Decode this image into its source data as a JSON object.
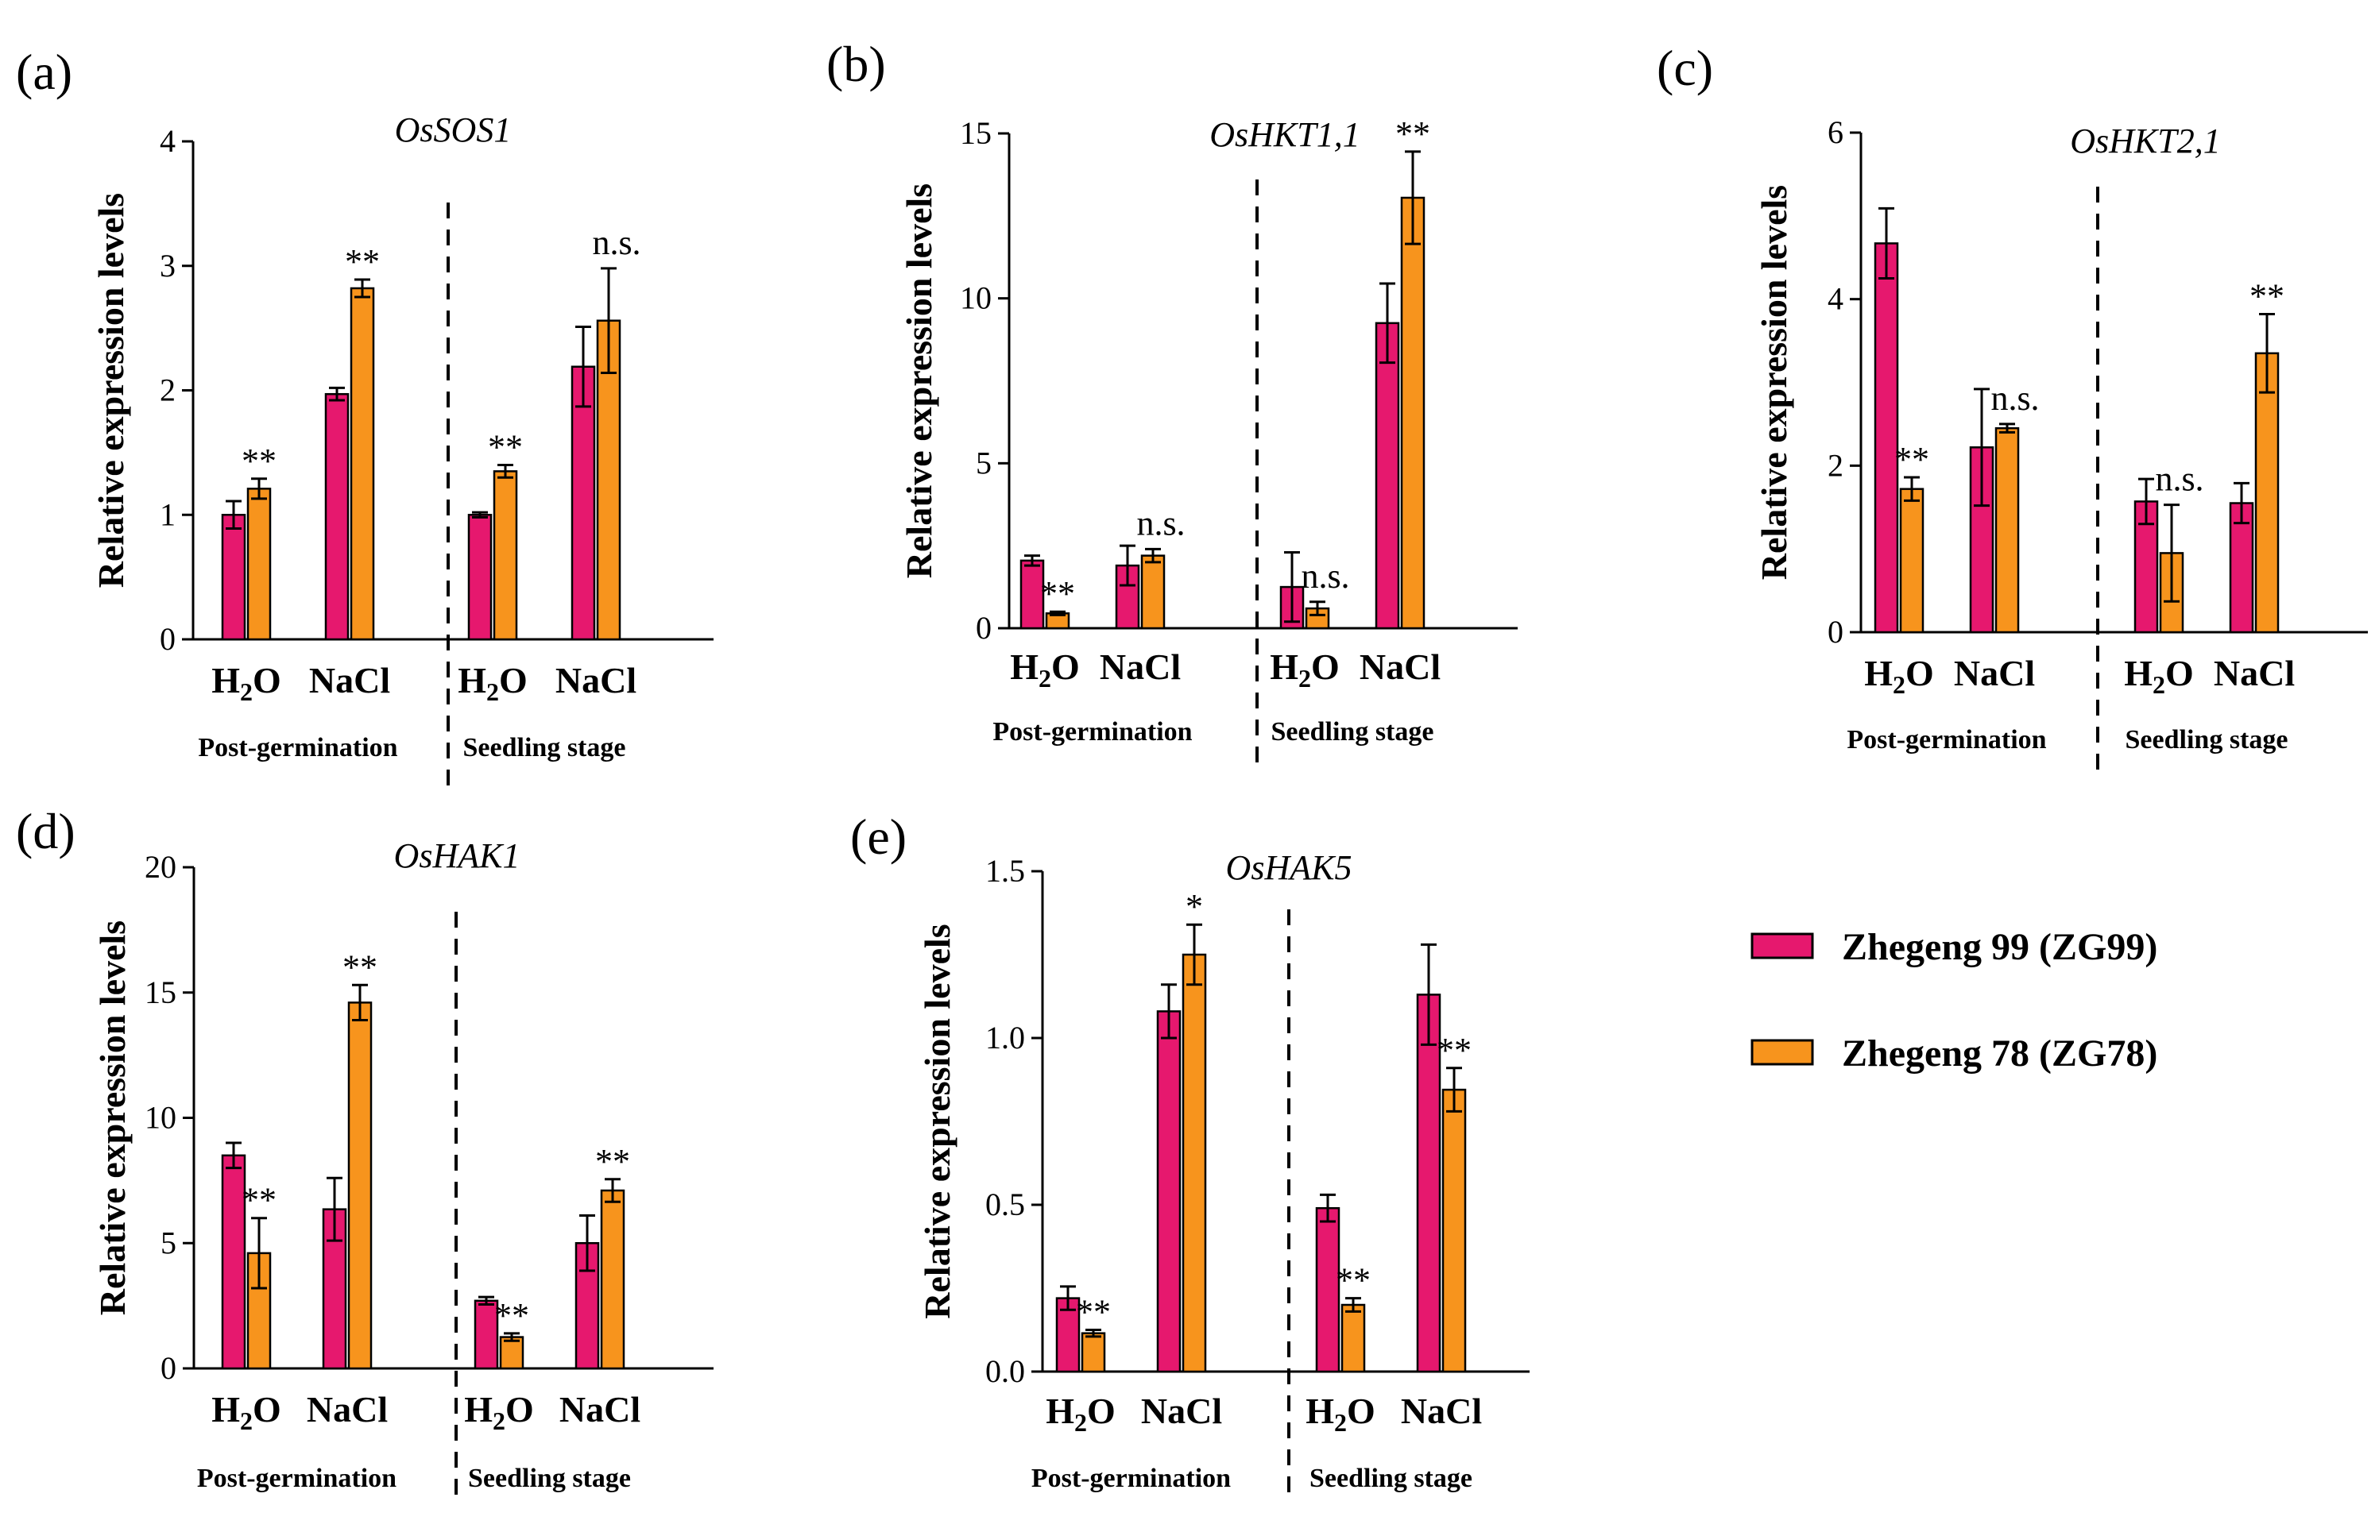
{
  "colors": {
    "zg99": "#E6186E",
    "zg78": "#F7941D",
    "axis": "#000000"
  },
  "legend": {
    "items": [
      {
        "key": "zg99",
        "label": "Zhegeng 99 (ZG99)"
      },
      {
        "key": "zg78",
        "label": "Zhegeng 78 (ZG78)"
      }
    ]
  },
  "chart_data": [
    {
      "panel": "(a)",
      "title": "OsSOS1",
      "type": "bar",
      "ylabel": "Relative expression levels",
      "ylim": [
        0,
        4
      ],
      "yticks": [
        {
          "v": 0,
          "t": "0"
        },
        {
          "v": 1,
          "t": "1"
        },
        {
          "v": 2,
          "t": "2"
        },
        {
          "v": 3,
          "t": "3"
        },
        {
          "v": 4,
          "t": "4"
        }
      ],
      "stages": [
        "Post-germination",
        "Seedling stage"
      ],
      "categories": [
        "H2O",
        "NaCl",
        "H2O",
        "NaCl"
      ],
      "series": [
        {
          "name": "Zhegeng 99 (ZG99)",
          "values": [
            1.0,
            1.97,
            1.0,
            2.19
          ],
          "errors": [
            0.11,
            0.05,
            0.02,
            0.32
          ]
        },
        {
          "name": "Zhegeng 78 (ZG78)",
          "values": [
            1.21,
            2.82,
            1.35,
            2.56
          ],
          "errors": [
            0.08,
            0.07,
            0.05,
            0.42
          ]
        }
      ],
      "annotations": [
        "**",
        "**",
        "**",
        "n.s."
      ]
    },
    {
      "panel": "(b)",
      "title": "OsHKT1,1",
      "type": "bar",
      "ylabel": "Relative expression levels",
      "ylim": [
        0,
        15
      ],
      "yticks": [
        {
          "v": 0,
          "t": "0"
        },
        {
          "v": 5,
          "t": "5"
        },
        {
          "v": 10,
          "t": "10"
        },
        {
          "v": 15,
          "t": "15"
        }
      ],
      "stages": [
        "Post-germination",
        "Seedling stage"
      ],
      "categories": [
        "H2O",
        "NaCl",
        "H2O",
        "NaCl"
      ],
      "series": [
        {
          "name": "Zhegeng 99 (ZG99)",
          "values": [
            2.05,
            1.9,
            1.25,
            9.25
          ],
          "errors": [
            0.15,
            0.6,
            1.05,
            1.2
          ]
        },
        {
          "name": "Zhegeng 78 (ZG78)",
          "values": [
            0.45,
            2.2,
            0.6,
            13.05
          ],
          "errors": [
            0.05,
            0.2,
            0.2,
            1.4
          ]
        }
      ],
      "annotations": [
        "**",
        "n.s.",
        "n.s.",
        "**"
      ]
    },
    {
      "panel": "(c)",
      "title": "OsHKT2,1",
      "type": "bar",
      "ylabel": "Relative expression levels",
      "ylim": [
        0,
        6
      ],
      "yticks": [
        {
          "v": 0,
          "t": "0"
        },
        {
          "v": 2,
          "t": "2"
        },
        {
          "v": 4,
          "t": "4"
        },
        {
          "v": 6,
          "t": "6"
        }
      ],
      "stages": [
        "Post-germination",
        "Seedling stage"
      ],
      "categories": [
        "H2O",
        "NaCl",
        "H2O",
        "NaCl"
      ],
      "series": [
        {
          "name": "Zhegeng 99 (ZG99)",
          "values": [
            4.67,
            2.22,
            1.57,
            1.55
          ],
          "errors": [
            0.42,
            0.7,
            0.27,
            0.24
          ]
        },
        {
          "name": "Zhegeng 78 (ZG78)",
          "values": [
            1.72,
            2.45,
            0.95,
            3.35
          ],
          "errors": [
            0.14,
            0.05,
            0.58,
            0.47
          ]
        }
      ],
      "annotations": [
        "**",
        "n.s.",
        "n.s.",
        "**"
      ]
    },
    {
      "panel": "(d)",
      "title": "OsHAK1",
      "type": "bar",
      "ylabel": "Relative expression levels",
      "ylim": [
        0,
        20
      ],
      "yticks": [
        {
          "v": 0,
          "t": "0"
        },
        {
          "v": 5,
          "t": "5"
        },
        {
          "v": 10,
          "t": "10"
        },
        {
          "v": 15,
          "t": "15"
        },
        {
          "v": 20,
          "t": "20"
        }
      ],
      "stages": [
        "Post-germination",
        "Seedling stage"
      ],
      "categories": [
        "H2O",
        "NaCl",
        "H2O",
        "NaCl"
      ],
      "series": [
        {
          "name": "Zhegeng 99 (ZG99)",
          "values": [
            8.5,
            6.35,
            2.7,
            5.0
          ],
          "errors": [
            0.5,
            1.25,
            0.15,
            1.1
          ]
        },
        {
          "name": "Zhegeng 78 (ZG78)",
          "values": [
            4.6,
            14.6,
            1.25,
            7.1
          ],
          "errors": [
            1.4,
            0.7,
            0.15,
            0.45
          ]
        }
      ],
      "annotations": [
        "**",
        "**",
        "**",
        "**"
      ]
    },
    {
      "panel": "(e)",
      "title": "OsHAK5",
      "type": "bar",
      "ylabel": "Relative expression levels",
      "ylim": [
        0,
        1.5
      ],
      "yticks": [
        {
          "v": 0,
          "t": "0.0"
        },
        {
          "v": 0.5,
          "t": "0.5"
        },
        {
          "v": 1.0,
          "t": "1.0"
        },
        {
          "v": 1.5,
          "t": "1.5"
        }
      ],
      "stages": [
        "Post-germination",
        "Seedling stage"
      ],
      "categories": [
        "H2O",
        "NaCl",
        "H2O",
        "NaCl"
      ],
      "series": [
        {
          "name": "Zhegeng 99 (ZG99)",
          "values": [
            0.22,
            1.08,
            0.49,
            1.13
          ],
          "errors": [
            0.035,
            0.08,
            0.04,
            0.15
          ]
        },
        {
          "name": "Zhegeng 78 (ZG78)",
          "values": [
            0.115,
            1.25,
            0.2,
            0.845
          ],
          "errors": [
            0.01,
            0.09,
            0.02,
            0.065
          ]
        }
      ],
      "annotations": [
        "**",
        "*",
        "**",
        "**"
      ]
    }
  ]
}
